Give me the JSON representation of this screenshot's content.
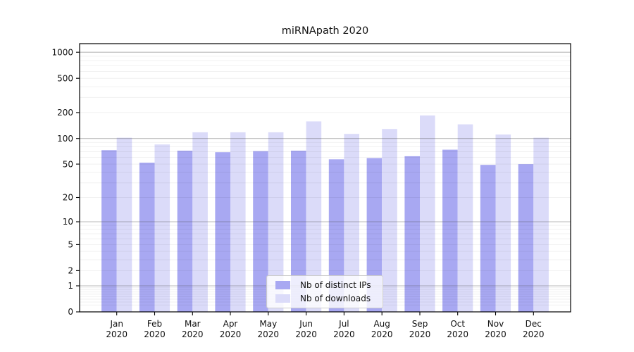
{
  "figure": {
    "title": "miRNApath 2020"
  },
  "chart_data": {
    "type": "bar",
    "title": "miRNApath 2020",
    "categories": [
      "Jan",
      "Feb",
      "Mar",
      "Apr",
      "May",
      "Jun",
      "Jul",
      "Aug",
      "Sep",
      "Oct",
      "Nov",
      "Dec"
    ],
    "category_sublabel": "2020",
    "series": [
      {
        "name": "Nb of distinct IPs",
        "color": "#a8a8f2",
        "values": [
          73,
          52,
          72,
          69,
          71,
          72,
          57,
          59,
          62,
          74,
          49,
          50
        ]
      },
      {
        "name": "Nb of downloads",
        "color": "#dbdbf9",
        "values": [
          102,
          85,
          118,
          118,
          118,
          158,
          113,
          129,
          185,
          146,
          111,
          102
        ]
      }
    ],
    "xlabel": "",
    "ylabel": "",
    "yscale": "log1p",
    "ylim": [
      0,
      1258
    ],
    "yticks": [
      0,
      1,
      2,
      5,
      10,
      20,
      50,
      100,
      200,
      500,
      1000
    ],
    "major_gridlines": [
      1,
      10,
      100,
      1000
    ],
    "grid": true,
    "legend": {
      "position": "lower center",
      "entries": [
        "Nb of distinct IPs",
        "Nb of downloads"
      ]
    },
    "colors": {
      "background": "#ffffff",
      "spine": "#000000",
      "major_grid": "#b0b0b0",
      "minor_grid": "#ebebeb",
      "text": "#111111"
    }
  }
}
